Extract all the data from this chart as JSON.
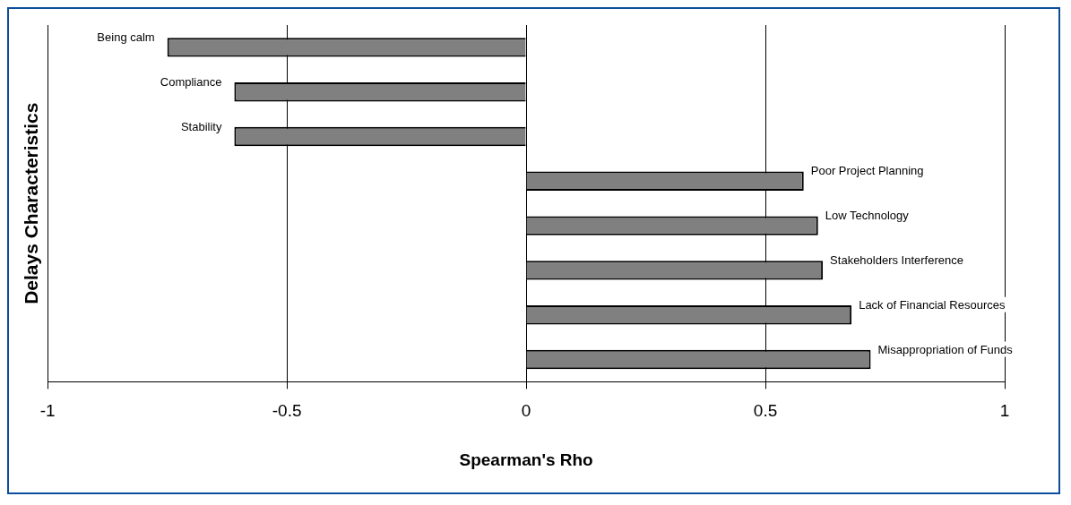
{
  "chart_data": {
    "type": "bar",
    "orientation": "horizontal",
    "xlabel": "Spearman's Rho",
    "ylabel": "Delays Characteristics",
    "categories": [
      "Being calm",
      "Compliance",
      "Stability",
      "Poor Project Planning",
      "Low Technology",
      "Stakeholders Interference",
      "Lack of Financial Resources",
      "Misappropriation of Funds"
    ],
    "values": [
      -0.75,
      -0.61,
      -0.61,
      0.58,
      0.61,
      0.62,
      0.68,
      0.72
    ],
    "color": "#808080",
    "xlim": [
      -1,
      1
    ],
    "xticks": [
      -1,
      -0.5,
      0,
      0.5,
      1
    ],
    "grid": "x",
    "legend": false
  }
}
